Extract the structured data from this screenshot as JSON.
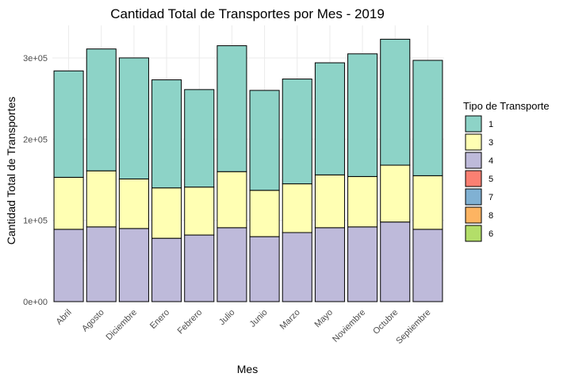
{
  "chart_data": {
    "type": "bar",
    "stacked": true,
    "title": "Cantidad Total de Transportes por Mes - 2019",
    "xlabel": "Mes",
    "ylabel": "Cantidad Total de Transportes",
    "ylim": [
      0,
      340000
    ],
    "yticks": [
      0,
      100000,
      200000,
      300000
    ],
    "ytick_labels": [
      "0e+00",
      "1e+05",
      "2e+05",
      "3e+05"
    ],
    "grid": true,
    "legend": {
      "title": "Tipo de Transporte",
      "placement": "right"
    },
    "categories": [
      "Abril",
      "Agosto",
      "Diciembre",
      "Enero",
      "Febrero",
      "Julio",
      "Junio",
      "Marzo",
      "Mayo",
      "Noviembre",
      "Octubre",
      "Septiembre"
    ],
    "series": [
      {
        "name": "4",
        "color": "#BEBADA",
        "values": [
          89000,
          92000,
          90000,
          78000,
          82000,
          91000,
          80000,
          85000,
          91000,
          92000,
          98000,
          89000
        ]
      },
      {
        "name": "3",
        "color": "#FFFFB3",
        "values": [
          64000,
          69000,
          61000,
          62000,
          59000,
          69000,
          57000,
          60000,
          65000,
          62000,
          70000,
          66000
        ]
      },
      {
        "name": "1",
        "color": "#8DD3C7",
        "values": [
          131000,
          150000,
          149000,
          133000,
          120000,
          155000,
          123000,
          129000,
          138000,
          151000,
          155000,
          142000
        ]
      },
      {
        "name": "5",
        "color": "#FB8072",
        "values": [
          0,
          0,
          0,
          0,
          0,
          0,
          0,
          0,
          0,
          0,
          0,
          0
        ]
      },
      {
        "name": "7",
        "color": "#80B1D3",
        "values": [
          0,
          0,
          0,
          0,
          0,
          0,
          0,
          0,
          0,
          0,
          0,
          0
        ]
      },
      {
        "name": "8",
        "color": "#FDB462",
        "values": [
          0,
          0,
          0,
          0,
          0,
          0,
          0,
          0,
          0,
          0,
          0,
          0
        ]
      },
      {
        "name": "6",
        "color": "#B3DE69",
        "values": [
          0,
          0,
          0,
          0,
          0,
          0,
          0,
          0,
          0,
          0,
          0,
          0
        ]
      }
    ],
    "stack_order": [
      "4",
      "3",
      "1",
      "5",
      "7",
      "8",
      "6"
    ],
    "legend_order": [
      "1",
      "3",
      "4",
      "5",
      "7",
      "8",
      "6"
    ]
  }
}
